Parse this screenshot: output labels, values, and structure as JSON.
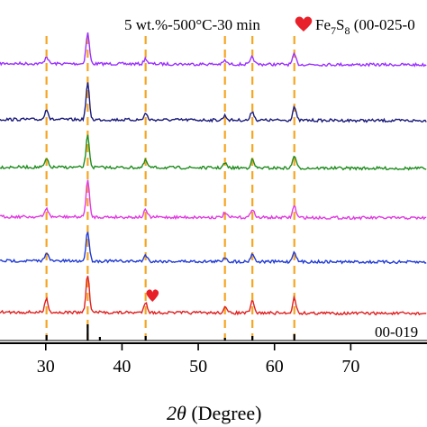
{
  "chart_data": {
    "type": "line",
    "title": "",
    "header_annotation": "5 wt.%-500°C-30 min",
    "legend_marker_label": "Fe",
    "legend_sub_1": "7",
    "legend_mid": "S",
    "legend_sub_2": "8",
    "legend_ref": " (00-025-0",
    "reference_label": "00-019",
    "xlabel_italic": "2θ",
    "xlabel_rest": " (Degree)",
    "xlim": [
      24,
      80
    ],
    "xticks": [
      30,
      40,
      50,
      60,
      70
    ],
    "xtick_labels": [
      "30",
      "40",
      "50",
      "60",
      "70"
    ],
    "grid": false,
    "dashed_lines_x": [
      30.1,
      35.5,
      43.1,
      53.5,
      57.1,
      62.6
    ],
    "dashed_line_color": "#f5a623",
    "heart_marker": {
      "x": 44.0,
      "color": "#e8202a"
    },
    "series": [
      {
        "color": "#9b30ff",
        "peaks": [
          [
            30.1,
            8
          ],
          [
            35.5,
            34
          ],
          [
            43.1,
            6
          ],
          [
            53.5,
            4
          ],
          [
            57.1,
            8
          ],
          [
            62.6,
            11
          ]
        ]
      },
      {
        "color": "#1a1a7a",
        "peaks": [
          [
            30.1,
            12
          ],
          [
            35.5,
            40
          ],
          [
            43.1,
            7
          ],
          [
            53.5,
            5
          ],
          [
            57.1,
            10
          ],
          [
            62.6,
            15
          ]
        ]
      },
      {
        "color": "#1e8c1e",
        "peaks": [
          [
            30.1,
            9
          ],
          [
            35.5,
            35
          ],
          [
            43.1,
            8
          ],
          [
            53.5,
            5
          ],
          [
            57.1,
            9
          ],
          [
            62.6,
            14
          ]
        ]
      },
      {
        "color": "#e03be0",
        "peaks": [
          [
            30.1,
            10
          ],
          [
            35.5,
            41
          ],
          [
            43.1,
            8
          ],
          [
            53.5,
            5
          ],
          [
            57.1,
            10
          ],
          [
            62.6,
            13
          ]
        ]
      },
      {
        "color": "#1f3ad6",
        "peaks": [
          [
            30.1,
            10
          ],
          [
            35.5,
            33
          ],
          [
            43.1,
            7
          ],
          [
            53.5,
            5
          ],
          [
            57.1,
            9
          ],
          [
            62.6,
            12
          ]
        ]
      },
      {
        "color": "#e01f1f",
        "peaks": [
          [
            30.1,
            15
          ],
          [
            35.5,
            42
          ],
          [
            43.1,
            12
          ],
          [
            53.5,
            6
          ],
          [
            57.1,
            13
          ],
          [
            62.6,
            17
          ]
        ]
      }
    ],
    "reference_pattern": {
      "color": "#000000",
      "sticks": [
        [
          30.1,
          6
        ],
        [
          35.5,
          18
        ],
        [
          37.1,
          4
        ],
        [
          43.1,
          5
        ],
        [
          53.5,
          3
        ],
        [
          57.1,
          5
        ],
        [
          62.6,
          7
        ]
      ]
    }
  }
}
